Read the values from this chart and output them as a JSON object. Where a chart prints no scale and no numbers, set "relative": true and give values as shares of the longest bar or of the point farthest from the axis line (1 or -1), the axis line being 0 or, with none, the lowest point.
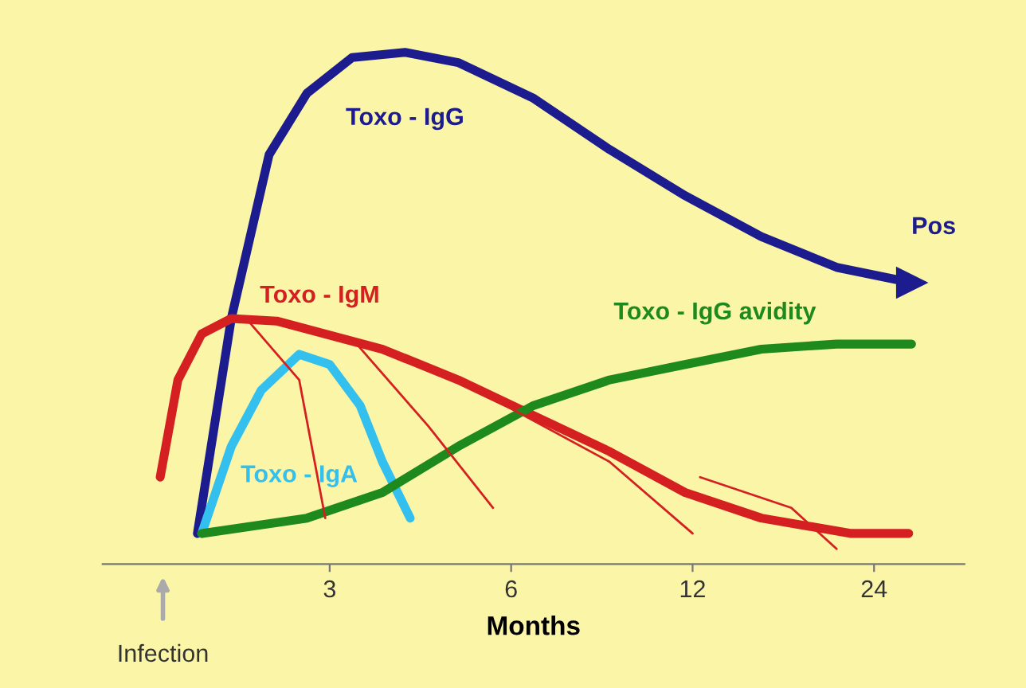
{
  "chart_data": {
    "type": "line",
    "relative": true,
    "xlabel": "Months",
    "legend": false,
    "grid": false,
    "tick_labels": "x",
    "marker": "none",
    "line_style": "solid",
    "log": "x",
    "xlim": [
      1.26,
      33.9
    ],
    "xticks": [
      3,
      6,
      12,
      24
    ],
    "annotations": [
      {
        "text": "Pos",
        "x": 27.7,
        "y": 0.55
      },
      "Infection"
    ],
    "series": [
      {
        "name": "Toxo - IgG",
        "color": "#1c1c8e",
        "x": [
          1.81,
          2.06,
          2.38,
          2.75,
          3.27,
          4.0,
          4.9,
          6.54,
          8.74,
          11.66,
          15.6,
          20.8,
          27.7
        ],
        "values": [
          0.06,
          0.48,
          0.8,
          0.92,
          0.99,
          1.0,
          0.98,
          0.91,
          0.81,
          0.72,
          0.64,
          0.58,
          0.55
        ]
      },
      {
        "name": "Toxo - IgM",
        "color": "#d42020",
        "x": [
          1.57,
          1.68,
          1.84,
          2.06,
          2.45,
          3.67,
          4.9,
          6.54,
          8.74,
          11.66,
          15.6,
          22.0,
          27.4
        ],
        "values": [
          0.17,
          0.36,
          0.45,
          0.48,
          0.475,
          0.42,
          0.36,
          0.29,
          0.22,
          0.14,
          0.09,
          0.06,
          0.06
        ]
      },
      {
        "name": "Toxo - IgA",
        "color": "#33c0ee",
        "x": [
          1.84,
          2.06,
          2.31,
          2.67,
          3.0,
          3.37,
          3.67,
          4.08
        ],
        "values": [
          0.06,
          0.23,
          0.34,
          0.41,
          0.39,
          0.31,
          0.2,
          0.09
        ]
      },
      {
        "name": "Toxo - IgG avidity",
        "color": "#1e8a1e",
        "x": [
          1.84,
          2.75,
          3.67,
          4.9,
          6.54,
          8.74,
          11.66,
          15.6,
          20.8,
          27.7
        ],
        "values": [
          0.06,
          0.09,
          0.14,
          0.23,
          0.31,
          0.36,
          0.39,
          0.42,
          0.43,
          0.43
        ]
      },
      {
        "color": "#d42020",
        "x": [
          2.18,
          2.67,
          2.95
        ],
        "values": [
          0.48,
          0.36,
          0.09
        ]
      },
      {
        "color": "#d42020",
        "x": [
          3.27,
          4.37,
          5.6
        ],
        "values": [
          0.44,
          0.27,
          0.11
        ]
      },
      {
        "color": "#d42020",
        "x": [
          4.9,
          8.74,
          12.0
        ],
        "values": [
          0.36,
          0.2,
          0.06
        ]
      },
      {
        "color": "#d42020",
        "x": [
          12.35,
          17.5,
          20.8
        ],
        "values": [
          0.17,
          0.11,
          0.03
        ]
      }
    ]
  }
}
